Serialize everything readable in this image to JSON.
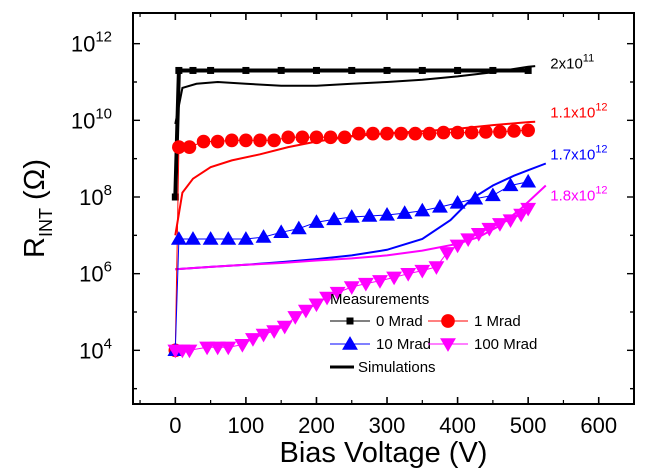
{
  "chart_data": {
    "type": "scatter",
    "xlabel": "Bias Voltage (V)",
    "ylabel": "R_INT (Ω)",
    "ylabel_parts": {
      "main": "R",
      "sub": "INT",
      "unit": " (Ω)"
    },
    "xlim": [
      -60,
      650
    ],
    "ylim_log10": [
      2.6,
      12.8
    ],
    "y_scale": "log",
    "x_ticks": [
      "0",
      "100",
      "200",
      "300",
      "400",
      "500",
      "600"
    ],
    "y_ticks": [
      {
        "base": "10",
        "exp": "4"
      },
      {
        "base": "10",
        "exp": "6"
      },
      {
        "base": "10",
        "exp": "8"
      },
      {
        "base": "10",
        "exp": "10"
      },
      {
        "base": "10",
        "exp": "12"
      }
    ],
    "legend": {
      "title": "Measurements",
      "entries": [
        {
          "label": "0 Mrad",
          "color": "#000000",
          "marker": "square"
        },
        {
          "label": "1 Mrad",
          "color": "#ff0000",
          "marker": "circle"
        },
        {
          "label": "10 Mrad",
          "color": "#0000ff",
          "marker": "triangle-up"
        },
        {
          "label": "100 Mrad",
          "color": "#ff00ff",
          "marker": "triangle-down"
        },
        {
          "label": "Simulations",
          "color": "#000000",
          "marker": "line"
        }
      ]
    },
    "annotations": [
      {
        "base": "2x10",
        "exp": "11",
        "color": "#000000",
        "x": 520,
        "y": 300000000000.0
      },
      {
        "base": "1.1x10",
        "exp": "12",
        "color": "#ff0000",
        "x": 520,
        "y": 16000000000.0
      },
      {
        "base": "1.7x10",
        "exp": "12",
        "color": "#0000ff",
        "x": 520,
        "y": 1300000000.0
      },
      {
        "base": "1.8x10",
        "exp": "12",
        "color": "#ff00ff",
        "x": 520,
        "y": 110000000.0
      }
    ],
    "measurements": [
      {
        "name": "0 Mrad",
        "color": "#000000",
        "marker": "square",
        "points": [
          [
            0,
            100000000.0
          ],
          [
            5,
            200000000000.0
          ],
          [
            25,
            200000000000.0
          ],
          [
            50,
            200000000000.0
          ],
          [
            100,
            200000000000.0
          ],
          [
            150,
            200000000000.0
          ],
          [
            200,
            200000000000.0
          ],
          [
            250,
            200000000000.0
          ],
          [
            300,
            200000000000.0
          ],
          [
            350,
            200000000000.0
          ],
          [
            400,
            200000000000.0
          ],
          [
            450,
            200000000000.0
          ],
          [
            500,
            200000000000.0
          ]
        ]
      },
      {
        "name": "1 Mrad",
        "color": "#ff0000",
        "marker": "circle",
        "points": [
          [
            0,
            10000.0
          ],
          [
            5,
            2000000000.0
          ],
          [
            20,
            2000000000.0
          ],
          [
            40,
            2800000000.0
          ],
          [
            60,
            2800000000.0
          ],
          [
            80,
            3000000000.0
          ],
          [
            100,
            3000000000.0
          ],
          [
            120,
            3000000000.0
          ],
          [
            140,
            3000000000.0
          ],
          [
            160,
            3600000000.0
          ],
          [
            180,
            3600000000.0
          ],
          [
            200,
            3600000000.0
          ],
          [
            220,
            3600000000.0
          ],
          [
            240,
            3600000000.0
          ],
          [
            260,
            4500000000.0
          ],
          [
            280,
            4500000000.0
          ],
          [
            300,
            4500000000.0
          ],
          [
            320,
            4500000000.0
          ],
          [
            340,
            4500000000.0
          ],
          [
            360,
            4500000000.0
          ],
          [
            380,
            4800000000.0
          ],
          [
            400,
            4800000000.0
          ],
          [
            420,
            4800000000.0
          ],
          [
            440,
            5000000000.0
          ],
          [
            460,
            5000000000.0
          ],
          [
            480,
            5300000000.0
          ],
          [
            500,
            5500000000.0
          ]
        ]
      },
      {
        "name": "10 Mrad",
        "color": "#0000ff",
        "marker": "triangle-up",
        "points": [
          [
            0,
            10000.0
          ],
          [
            5,
            8000000.0
          ],
          [
            25,
            8000000.0
          ],
          [
            50,
            8000000.0
          ],
          [
            75,
            8000000.0
          ],
          [
            100,
            8000000.0
          ],
          [
            125,
            9000000.0
          ],
          [
            150,
            12000000.0
          ],
          [
            175,
            15000000.0
          ],
          [
            200,
            22000000.0
          ],
          [
            225,
            26000000.0
          ],
          [
            250,
            30000000.0
          ],
          [
            275,
            32000000.0
          ],
          [
            300,
            34000000.0
          ],
          [
            325,
            38000000.0
          ],
          [
            350,
            44000000.0
          ],
          [
            375,
            55000000.0
          ],
          [
            400,
            70000000.0
          ],
          [
            425,
            90000000.0
          ],
          [
            450,
            110000000.0
          ],
          [
            475,
            200000000.0
          ],
          [
            500,
            250000000.0
          ]
        ]
      },
      {
        "name": "100 Mrad",
        "color": "#ff00ff",
        "marker": "triangle-down",
        "points": [
          [
            0,
            10000.0
          ],
          [
            10,
            10000.0
          ],
          [
            20,
            10000.0
          ],
          [
            45,
            12000.0
          ],
          [
            60,
            12000.0
          ],
          [
            75,
            12000.0
          ],
          [
            95,
            14000.0
          ],
          [
            110,
            20000.0
          ],
          [
            125,
            26000.0
          ],
          [
            140,
            32000.0
          ],
          [
            155,
            42000.0
          ],
          [
            170,
            75000.0
          ],
          [
            185,
            110000.0
          ],
          [
            200,
            160000.0
          ],
          [
            215,
            240000.0
          ],
          [
            230,
            320000.0
          ],
          [
            250,
            450000.0
          ],
          [
            270,
            550000.0
          ],
          [
            290,
            650000.0
          ],
          [
            310,
            800000.0
          ],
          [
            330,
            1000000.0
          ],
          [
            350,
            1200000.0
          ],
          [
            370,
            1500000.0
          ],
          [
            385,
            3500000.0
          ],
          [
            400,
            5500000.0
          ],
          [
            415,
            8000000.0
          ],
          [
            430,
            11000000.0
          ],
          [
            445,
            15000000.0
          ],
          [
            460,
            20000000.0
          ],
          [
            475,
            25000000.0
          ],
          [
            490,
            35000000.0
          ],
          [
            500,
            50000000.0
          ]
        ]
      }
    ],
    "simulations": [
      {
        "name": "0 Mrad",
        "color": "#000000",
        "points": [
          [
            0,
            8000000000.0
          ],
          [
            10,
            70000000000.0
          ],
          [
            30,
            90000000000.0
          ],
          [
            60,
            100000000000.0
          ],
          [
            100,
            90000000000.0
          ],
          [
            150,
            80000000000.0
          ],
          [
            200,
            80000000000.0
          ],
          [
            250,
            90000000000.0
          ],
          [
            300,
            100000000000.0
          ],
          [
            350,
            115000000000.0
          ],
          [
            400,
            140000000000.0
          ],
          [
            450,
            180000000000.0
          ],
          [
            500,
            250000000000.0
          ],
          [
            510,
            260000000000.0
          ]
        ]
      },
      {
        "name": "1 Mrad",
        "color": "#ff0000",
        "points": [
          [
            0,
            10000000.0
          ],
          [
            10,
            130000000.0
          ],
          [
            25,
            300000000.0
          ],
          [
            50,
            600000000.0
          ],
          [
            80,
            900000000.0
          ],
          [
            120,
            1300000000.0
          ],
          [
            160,
            2000000000.0
          ],
          [
            200,
            2800000000.0
          ],
          [
            250,
            3800000000.0
          ],
          [
            300,
            4600000000.0
          ],
          [
            350,
            5200000000.0
          ],
          [
            400,
            6000000000.0
          ],
          [
            450,
            7500000000.0
          ],
          [
            500,
            9000000000.0
          ],
          [
            510,
            9200000000.0
          ]
        ]
      },
      {
        "name": "10 Mrad",
        "color": "#0000ff",
        "points": [
          [
            0,
            1300000.0
          ],
          [
            50,
            1500000.0
          ],
          [
            100,
            1700000.0
          ],
          [
            150,
            2000000.0
          ],
          [
            200,
            2400000.0
          ],
          [
            250,
            3000000.0
          ],
          [
            300,
            4200000.0
          ],
          [
            350,
            8000000.0
          ],
          [
            390,
            25000000.0
          ],
          [
            420,
            90000000.0
          ],
          [
            450,
            200000000.0
          ],
          [
            480,
            360000000.0
          ],
          [
            500,
            500000000.0
          ],
          [
            525,
            750000000.0
          ]
        ]
      },
      {
        "name": "100 Mrad",
        "color": "#ff00ff",
        "points": [
          [
            0,
            1300000.0
          ],
          [
            50,
            1500000.0
          ],
          [
            100,
            1700000.0
          ],
          [
            150,
            1900000.0
          ],
          [
            200,
            2200000.0
          ],
          [
            250,
            2500000.0
          ],
          [
            300,
            3000000.0
          ],
          [
            350,
            4000000.0
          ],
          [
            400,
            6000000.0
          ],
          [
            430,
            9000000.0
          ],
          [
            460,
            18000000.0
          ],
          [
            490,
            50000000.0
          ],
          [
            525,
            200000000.0
          ]
        ]
      }
    ]
  }
}
